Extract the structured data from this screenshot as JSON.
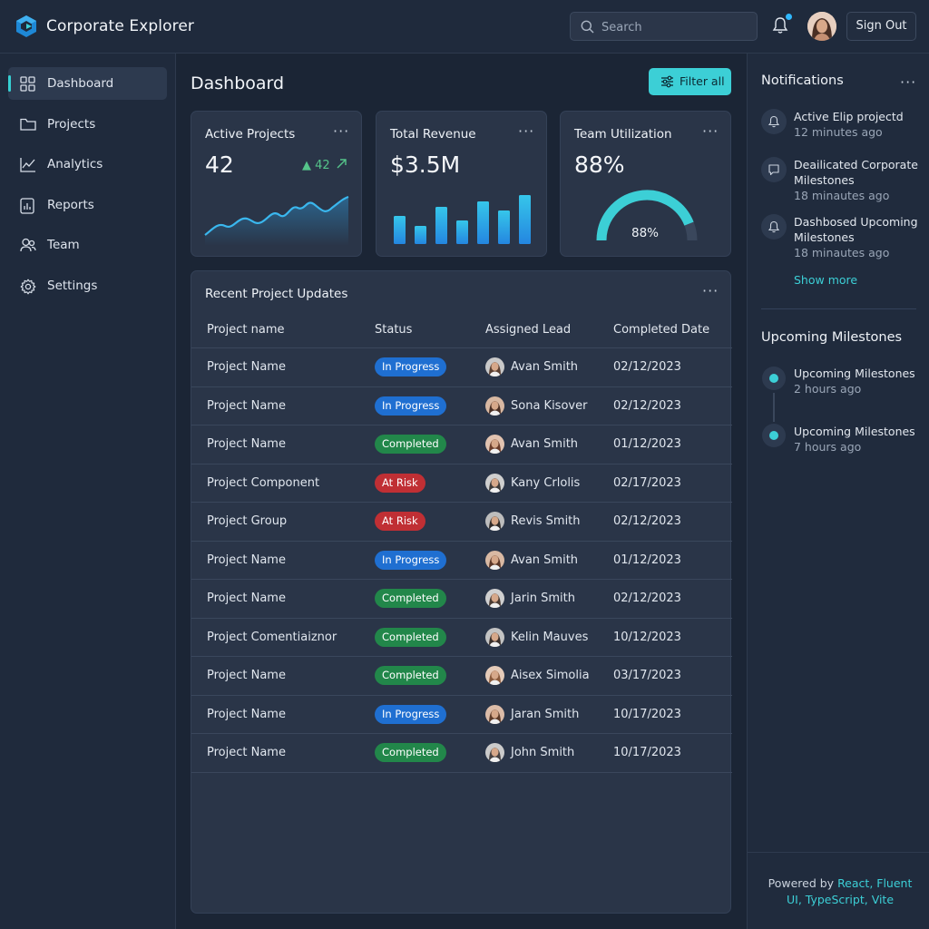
{
  "header": {
    "app_title": "Corporate Explorer",
    "search_placeholder": "Search",
    "sign_out_label": "Sign Out"
  },
  "sidebar": {
    "items": [
      {
        "label": "Dashboard",
        "icon": "grid-icon",
        "active": true
      },
      {
        "label": "Projects",
        "icon": "folder-icon"
      },
      {
        "label": "Analytics",
        "icon": "line-chart-icon"
      },
      {
        "label": "Reports",
        "icon": "report-icon"
      },
      {
        "label": "Team",
        "icon": "people-icon"
      },
      {
        "label": "Settings",
        "icon": "gear-icon"
      }
    ]
  },
  "main": {
    "title": "Dashboard",
    "filter_label": "Filter all",
    "cards": {
      "active_projects": {
        "title": "Active Projects",
        "value": "42",
        "trend": "42"
      },
      "total_revenue": {
        "title": "Total Revenue",
        "value": "$3.5M"
      },
      "team_utilization": {
        "title": "Team Utilization",
        "value": "88%",
        "gauge_label": "88%",
        "gauge_fraction": 0.88
      }
    },
    "more_glyph": "···",
    "table": {
      "title": "Recent Project Updates",
      "headers": [
        "Project name",
        "Status",
        "Assigned Lead",
        "Completed Date"
      ],
      "rows": [
        {
          "name": "Project Name",
          "status": "In Progress",
          "lead": "Avan Smith",
          "date": "02/12/2023"
        },
        {
          "name": "Project Name",
          "status": "In Progress",
          "lead": "Sona Kisover",
          "date": "02/12/2023"
        },
        {
          "name": "Project Name",
          "status": "Completed",
          "lead": "Avan Smith",
          "date": "01/12/2023"
        },
        {
          "name": "Project Component",
          "status": "At Risk",
          "lead": "Kany Crlolis",
          "date": "02/17/2023"
        },
        {
          "name": "Project Group",
          "status": "At Risk",
          "lead": "Revis Smith",
          "date": "02/12/2023"
        },
        {
          "name": "Project Name",
          "status": "In Progress",
          "lead": "Avan Smith",
          "date": "01/12/2023"
        },
        {
          "name": "Project Name",
          "status": "Completed",
          "lead": "Jarin Smith",
          "date": "02/12/2023"
        },
        {
          "name": "Project Comentiaiznor",
          "status": "Completed",
          "lead": "Kelin Mauves",
          "date": "10/12/2023"
        },
        {
          "name": "Project Name",
          "status": "Completed",
          "lead": "Aisex Simolia",
          "date": "03/17/2023"
        },
        {
          "name": "Project Name",
          "status": "In Progress",
          "lead": "Jaran Smith",
          "date": "10/17/2023"
        },
        {
          "name": "Project Name",
          "status": "Completed",
          "lead": "John Smith",
          "date": "10/17/2023"
        }
      ]
    }
  },
  "right_panel": {
    "notifications_title": "Notifications",
    "notifications": [
      {
        "text": "Active Elip projectd",
        "time": "12 minutes ago",
        "icon": "bell-icon"
      },
      {
        "text": "Deailicated Corporate Milestones",
        "time": "18 minautes ago",
        "icon": "message-icon"
      },
      {
        "text": "Dashbosed Upcoming Milestones",
        "time": "18 minautes ago",
        "icon": "bell-icon"
      }
    ],
    "show_more": "Show more",
    "milestones_title": "Upcoming Milestones",
    "milestones": [
      {
        "text": "Upcoming Milestones",
        "time": "2 hours ago"
      },
      {
        "text": "Upcoming Milestones",
        "time": "7 hours ago"
      }
    ],
    "footer": {
      "prefix": "Powered by ",
      "tech1": "React",
      "sep1": ", ",
      "tech2": "Fluent UI",
      "sep2": ", ",
      "tech3": "TypeScript",
      "sep3": ", ",
      "tech4": "Vite"
    }
  },
  "colors": {
    "accent": "#3ccfd6",
    "in_progress": "#1f6fd1",
    "completed": "#22874a",
    "at_risk": "#c02f34"
  }
}
